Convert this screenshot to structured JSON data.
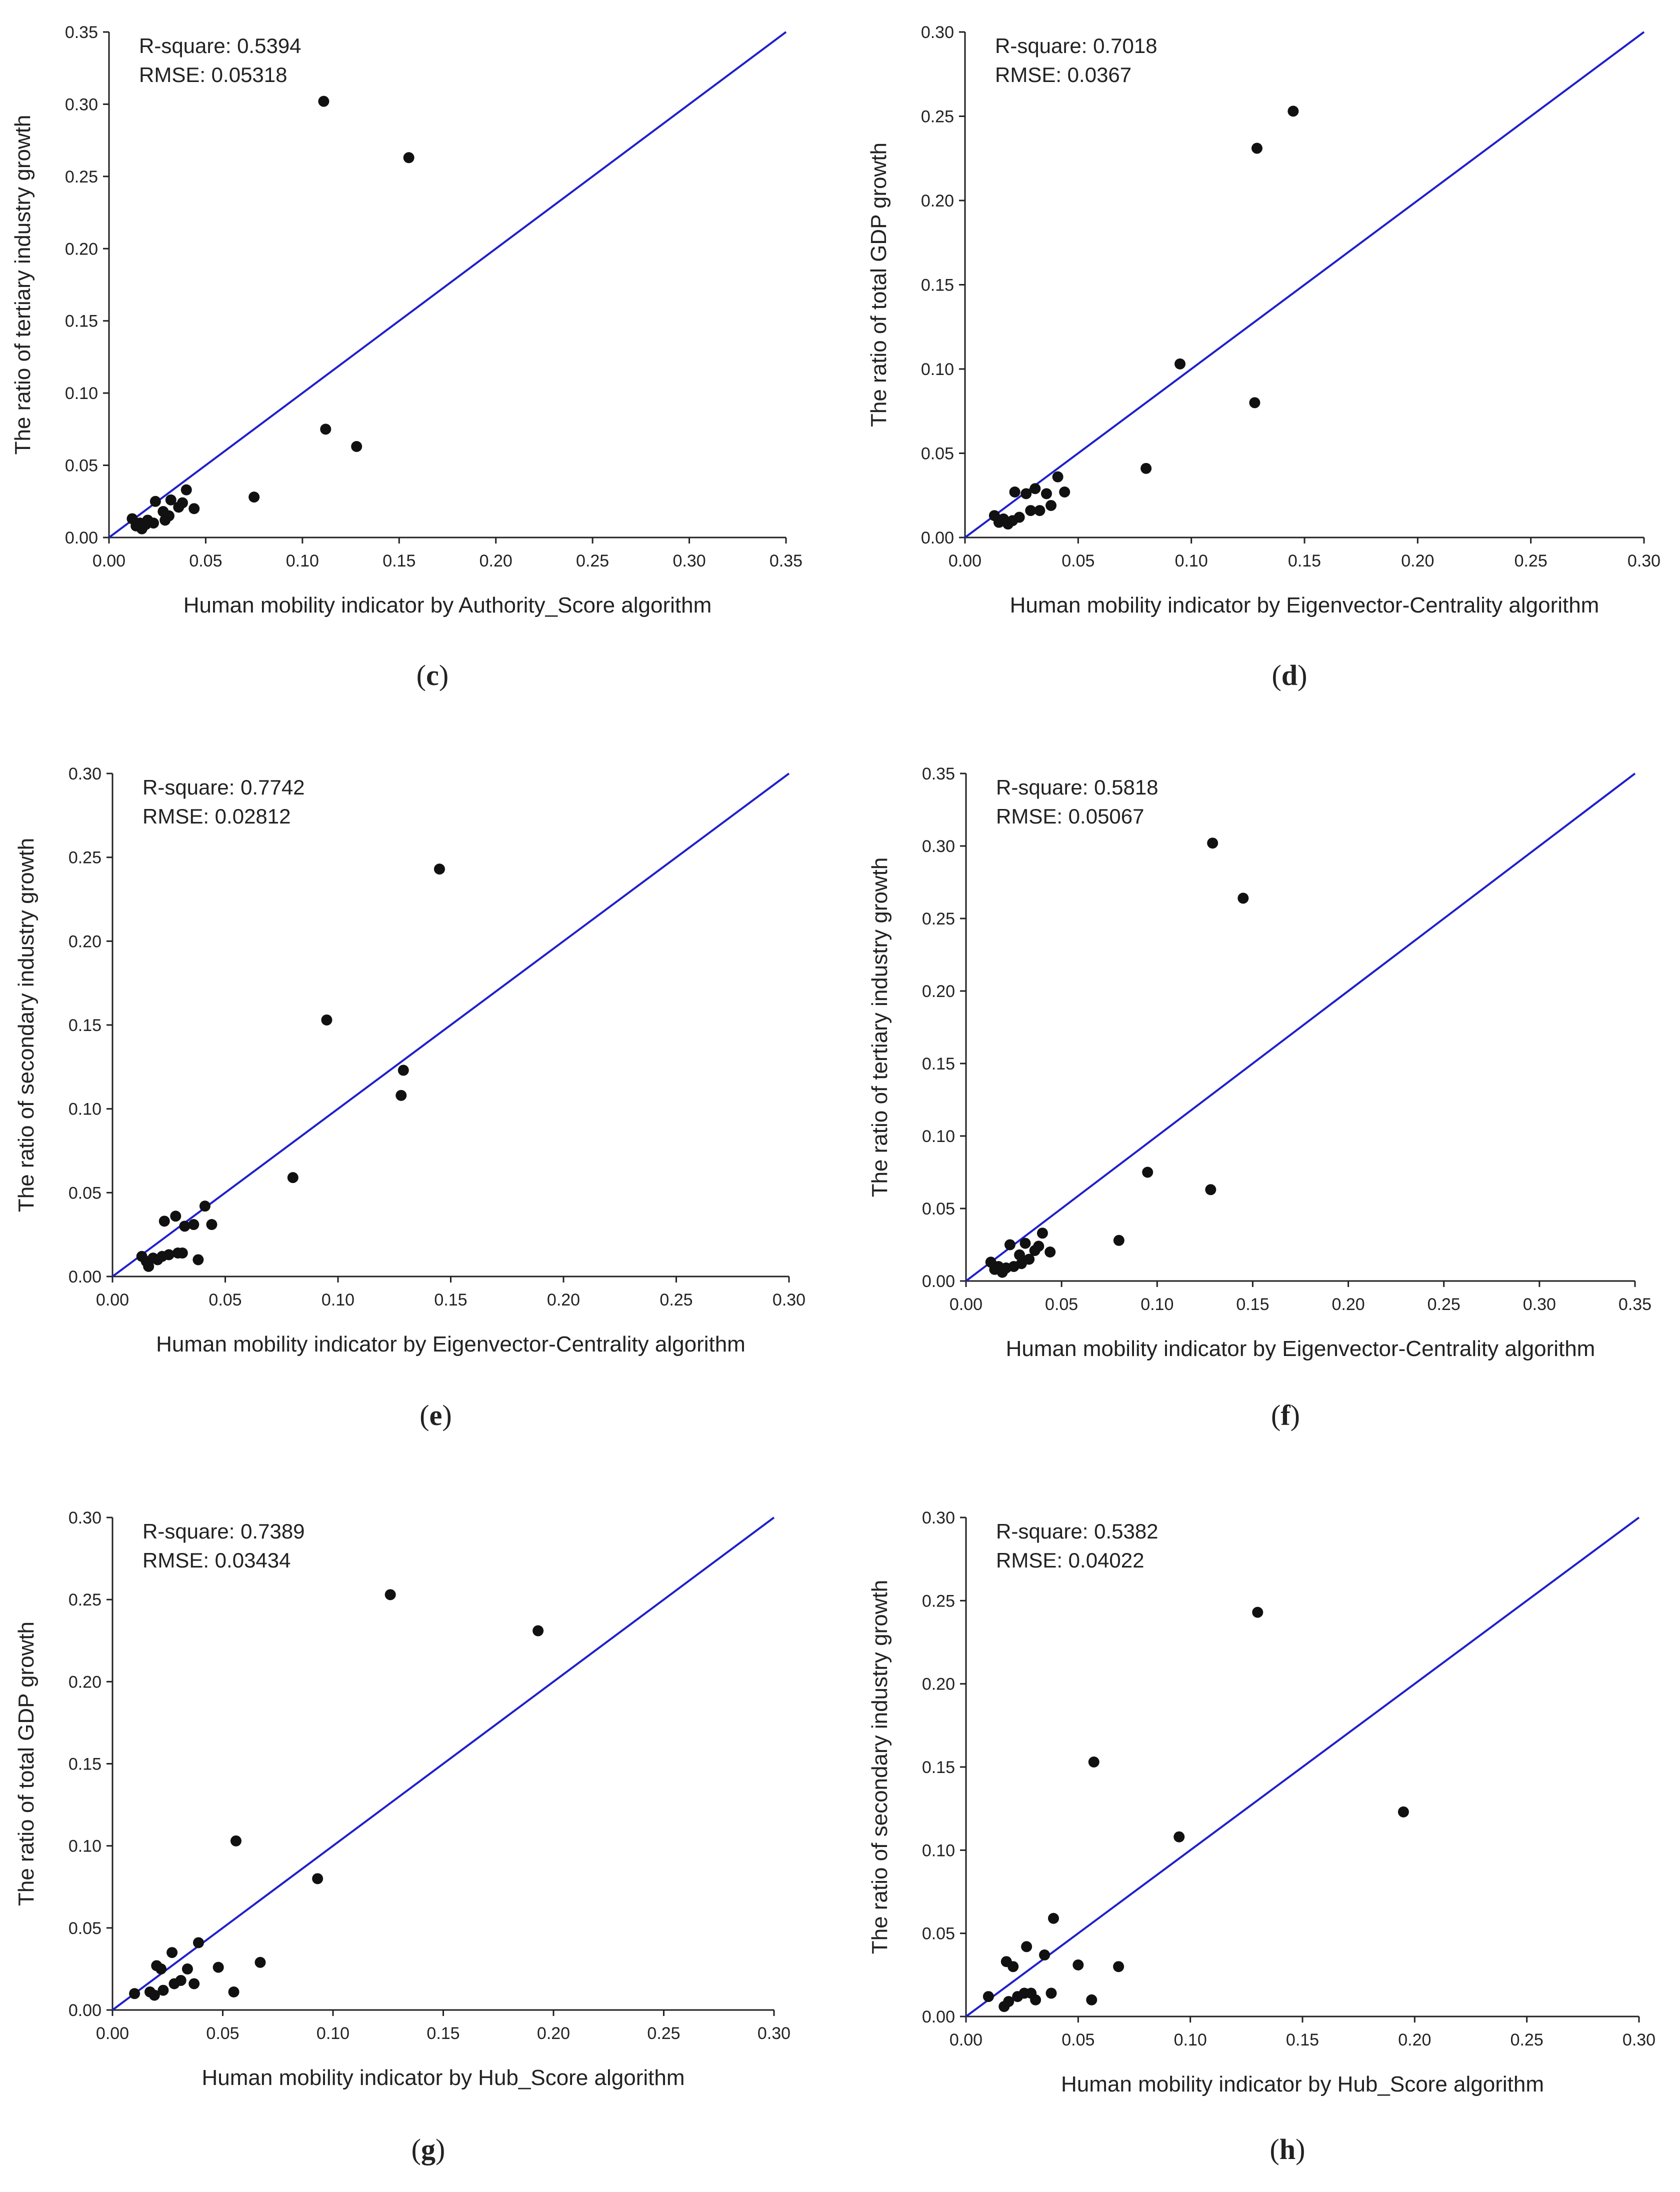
{
  "chart_data": [
    {
      "type": "scatter",
      "panel_label": "c",
      "r_square_text": "R-square: 0.5394",
      "rmse_text": "RMSE: 0.05318",
      "xlabel": "Human mobility indicator by Authority_Score algorithm",
      "ylabel": "The ratio of tertiary industry growth",
      "xlim": [
        0,
        0.35
      ],
      "ylim": [
        0,
        0.35
      ],
      "xticks": [
        "0.00",
        "0.05",
        "0.10",
        "0.15",
        "0.20",
        "0.25",
        "0.30",
        "0.35"
      ],
      "yticks": [
        "0.00",
        "0.05",
        "0.10",
        "0.15",
        "0.20",
        "0.25",
        "0.30",
        "0.35"
      ],
      "line_color": "#1f1fcc",
      "line": [
        [
          0,
          0
        ],
        [
          0.35,
          0.35
        ]
      ],
      "points": [
        [
          0.012,
          0.013
        ],
        [
          0.014,
          0.008
        ],
        [
          0.016,
          0.01
        ],
        [
          0.017,
          0.006
        ],
        [
          0.019,
          0.009
        ],
        [
          0.02,
          0.012
        ],
        [
          0.023,
          0.01
        ],
        [
          0.024,
          0.025
        ],
        [
          0.028,
          0.018
        ],
        [
          0.029,
          0.012
        ],
        [
          0.031,
          0.015
        ],
        [
          0.032,
          0.026
        ],
        [
          0.036,
          0.021
        ],
        [
          0.038,
          0.024
        ],
        [
          0.04,
          0.033
        ],
        [
          0.044,
          0.02
        ],
        [
          0.075,
          0.028
        ],
        [
          0.111,
          0.302
        ],
        [
          0.112,
          0.075
        ],
        [
          0.128,
          0.063
        ],
        [
          0.155,
          0.263
        ]
      ]
    },
    {
      "type": "scatter",
      "panel_label": "d",
      "r_square_text": "R-square: 0.7018",
      "rmse_text": "RMSE: 0.0367",
      "xlabel": "Human mobility indicator by Eigenvector-Centrality algorithm",
      "ylabel": "The ratio of total GDP growth",
      "xlim": [
        0,
        0.3
      ],
      "ylim": [
        0,
        0.3
      ],
      "xticks": [
        "0.00",
        "0.05",
        "0.10",
        "0.15",
        "0.20",
        "0.25",
        "0.30"
      ],
      "yticks": [
        "0.00",
        "0.05",
        "0.10",
        "0.15",
        "0.20",
        "0.25",
        "0.30"
      ],
      "line_color": "#1f1fcc",
      "line": [
        [
          0,
          0
        ],
        [
          0.3,
          0.3
        ]
      ],
      "points": [
        [
          0.013,
          0.013
        ],
        [
          0.015,
          0.009
        ],
        [
          0.017,
          0.011
        ],
        [
          0.019,
          0.008
        ],
        [
          0.021,
          0.01
        ],
        [
          0.022,
          0.027
        ],
        [
          0.024,
          0.012
        ],
        [
          0.027,
          0.026
        ],
        [
          0.029,
          0.016
        ],
        [
          0.031,
          0.029
        ],
        [
          0.033,
          0.016
        ],
        [
          0.036,
          0.026
        ],
        [
          0.038,
          0.019
        ],
        [
          0.041,
          0.036
        ],
        [
          0.044,
          0.027
        ],
        [
          0.08,
          0.041
        ],
        [
          0.095,
          0.103
        ],
        [
          0.128,
          0.08
        ],
        [
          0.129,
          0.231
        ],
        [
          0.145,
          0.253
        ]
      ]
    },
    {
      "type": "scatter",
      "panel_label": "e",
      "r_square_text": "R-square: 0.7742",
      "rmse_text": "RMSE: 0.02812",
      "xlabel": "Human mobility indicator by Eigenvector-Centrality algorithm",
      "ylabel": "The ratio of secondary industry growth",
      "xlim": [
        0,
        0.3
      ],
      "ylim": [
        0,
        0.3
      ],
      "xticks": [
        "0.00",
        "0.05",
        "0.10",
        "0.15",
        "0.20",
        "0.25",
        "0.30"
      ],
      "yticks": [
        "0.00",
        "0.05",
        "0.10",
        "0.15",
        "0.20",
        "0.25",
        "0.30"
      ],
      "line_color": "#1f1fcc",
      "line": [
        [
          0,
          0
        ],
        [
          0.3,
          0.3
        ]
      ],
      "points": [
        [
          0.013,
          0.012
        ],
        [
          0.015,
          0.009
        ],
        [
          0.016,
          0.006
        ],
        [
          0.018,
          0.011
        ],
        [
          0.02,
          0.01
        ],
        [
          0.022,
          0.012
        ],
        [
          0.023,
          0.033
        ],
        [
          0.025,
          0.013
        ],
        [
          0.028,
          0.036
        ],
        [
          0.029,
          0.014
        ],
        [
          0.031,
          0.014
        ],
        [
          0.032,
          0.03
        ],
        [
          0.036,
          0.031
        ],
        [
          0.038,
          0.01
        ],
        [
          0.041,
          0.042
        ],
        [
          0.044,
          0.031
        ],
        [
          0.08,
          0.059
        ],
        [
          0.095,
          0.153
        ],
        [
          0.128,
          0.108
        ],
        [
          0.129,
          0.123
        ],
        [
          0.145,
          0.243
        ]
      ]
    },
    {
      "type": "scatter",
      "panel_label": "f",
      "r_square_text": "R-square: 0.5818",
      "rmse_text": "RMSE: 0.05067",
      "xlabel": "Human mobility indicator by Eigenvector-Centrality algorithm",
      "ylabel": "The ratio of tertiary industry growth",
      "xlim": [
        0,
        0.35
      ],
      "ylim": [
        0,
        0.35
      ],
      "xticks": [
        "0.00",
        "0.05",
        "0.10",
        "0.15",
        "0.20",
        "0.25",
        "0.30",
        "0.35"
      ],
      "yticks": [
        "0.00",
        "0.05",
        "0.10",
        "0.15",
        "0.20",
        "0.25",
        "0.30",
        "0.35"
      ],
      "line_color": "#1f1fcc",
      "line": [
        [
          0,
          0
        ],
        [
          0.35,
          0.35
        ]
      ],
      "points": [
        [
          0.013,
          0.013
        ],
        [
          0.015,
          0.008
        ],
        [
          0.017,
          0.01
        ],
        [
          0.019,
          0.006
        ],
        [
          0.021,
          0.009
        ],
        [
          0.023,
          0.025
        ],
        [
          0.025,
          0.01
        ],
        [
          0.028,
          0.018
        ],
        [
          0.029,
          0.012
        ],
        [
          0.031,
          0.026
        ],
        [
          0.033,
          0.015
        ],
        [
          0.036,
          0.021
        ],
        [
          0.038,
          0.024
        ],
        [
          0.04,
          0.033
        ],
        [
          0.044,
          0.02
        ],
        [
          0.08,
          0.028
        ],
        [
          0.095,
          0.075
        ],
        [
          0.128,
          0.063
        ],
        [
          0.129,
          0.302
        ],
        [
          0.145,
          0.264
        ]
      ]
    },
    {
      "type": "scatter",
      "panel_label": "g",
      "r_square_text": "R-square: 0.7389",
      "rmse_text": "RMSE: 0.03434",
      "xlabel": "Human mobility indicator by Hub_Score algorithm",
      "ylabel": "The ratio of total GDP growth",
      "xlim": [
        0,
        0.3
      ],
      "ylim": [
        0,
        0.3
      ],
      "xticks": [
        "0.00",
        "0.05",
        "0.10",
        "0.15",
        "0.20",
        "0.25",
        "0.30"
      ],
      "yticks": [
        "0.00",
        "0.05",
        "0.10",
        "0.15",
        "0.20",
        "0.25",
        "0.30"
      ],
      "line_color": "#1f1fcc",
      "line": [
        [
          0,
          0
        ],
        [
          0.3,
          0.3
        ]
      ],
      "points": [
        [
          0.01,
          0.01
        ],
        [
          0.017,
          0.011
        ],
        [
          0.019,
          0.009
        ],
        [
          0.02,
          0.027
        ],
        [
          0.022,
          0.025
        ],
        [
          0.023,
          0.012
        ],
        [
          0.027,
          0.035
        ],
        [
          0.028,
          0.016
        ],
        [
          0.031,
          0.018
        ],
        [
          0.034,
          0.025
        ],
        [
          0.037,
          0.016
        ],
        [
          0.039,
          0.041
        ],
        [
          0.048,
          0.026
        ],
        [
          0.055,
          0.011
        ],
        [
          0.056,
          0.103
        ],
        [
          0.067,
          0.029
        ],
        [
          0.093,
          0.08
        ],
        [
          0.126,
          0.253
        ],
        [
          0.193,
          0.231
        ]
      ]
    },
    {
      "type": "scatter",
      "panel_label": "h",
      "r_square_text": "R-square: 0.5382",
      "rmse_text": "RMSE: 0.04022",
      "xlabel": "Human mobility indicator by Hub_Score algorithm",
      "ylabel": "The ratio of secondary industry growth",
      "xlim": [
        0,
        0.3
      ],
      "ylim": [
        0,
        0.3
      ],
      "xticks": [
        "0.00",
        "0.05",
        "0.10",
        "0.15",
        "0.20",
        "0.25",
        "0.30"
      ],
      "yticks": [
        "0.00",
        "0.05",
        "0.10",
        "0.15",
        "0.20",
        "0.25",
        "0.30"
      ],
      "line_color": "#1f1fcc",
      "line": [
        [
          0,
          0
        ],
        [
          0.3,
          0.3
        ]
      ],
      "points": [
        [
          0.01,
          0.012
        ],
        [
          0.017,
          0.006
        ],
        [
          0.018,
          0.033
        ],
        [
          0.019,
          0.009
        ],
        [
          0.021,
          0.03
        ],
        [
          0.023,
          0.012
        ],
        [
          0.026,
          0.014
        ],
        [
          0.027,
          0.042
        ],
        [
          0.029,
          0.014
        ],
        [
          0.031,
          0.01
        ],
        [
          0.035,
          0.037
        ],
        [
          0.038,
          0.014
        ],
        [
          0.039,
          0.059
        ],
        [
          0.05,
          0.031
        ],
        [
          0.056,
          0.01
        ],
        [
          0.057,
          0.153
        ],
        [
          0.068,
          0.03
        ],
        [
          0.095,
          0.108
        ],
        [
          0.13,
          0.243
        ],
        [
          0.195,
          0.123
        ]
      ]
    }
  ]
}
